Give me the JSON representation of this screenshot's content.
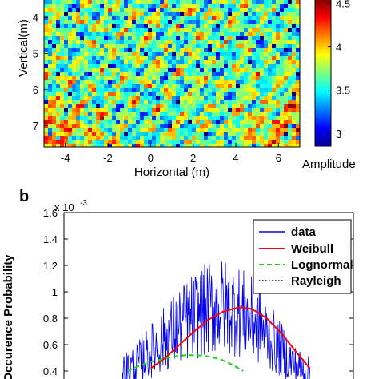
{
  "chart_data": [
    {
      "type": "heatmap",
      "xlabel": "Horizontal (m)",
      "ylabel": "Vertical(m)",
      "x_ticks": [
        -4,
        -2,
        0,
        2,
        4,
        6
      ],
      "y_ticks": [
        4,
        5,
        6,
        7
      ],
      "xlim": [
        -5,
        7
      ],
      "ylim_top_to_bottom": [
        3.5,
        7.6
      ],
      "colorbar": {
        "label": "Amplitude",
        "ticks": [
          "3",
          "3.5",
          "4",
          "4.5"
        ],
        "range": [
          2.85,
          4.55
        ],
        "colormap": "jet"
      }
    },
    {
      "panel_label": "b",
      "type": "line",
      "ylabel": "Occurence Probability",
      "y_exponent": "x 10",
      "y_exponent_power": "-3",
      "y_ticks": [
        "0.4",
        "0.6",
        "0.8",
        "1",
        "1.2",
        "1.4",
        "1.6"
      ],
      "ylim": [
        0.4,
        1.6
      ],
      "x_range": [
        0,
        1
      ],
      "legend_position": "top-right",
      "series": [
        {
          "name": "data",
          "color": "#0000ee",
          "style": "noisy",
          "x": [
            0.2,
            0.25,
            0.3,
            0.35,
            0.4,
            0.45,
            0.5,
            0.55,
            0.6,
            0.65,
            0.7,
            0.75,
            0.8,
            0.85
          ],
          "y": [
            0.4,
            0.45,
            0.55,
            0.65,
            0.74,
            0.82,
            0.87,
            0.89,
            0.86,
            0.79,
            0.68,
            0.56,
            0.44,
            0.38
          ]
        },
        {
          "name": "Weibull",
          "color": "#ff0000",
          "style": "solid",
          "x": [
            0.3,
            0.35,
            0.4,
            0.45,
            0.5,
            0.55,
            0.6,
            0.62,
            0.65,
            0.7,
            0.75,
            0.8,
            0.85
          ],
          "y": [
            0.42,
            0.5,
            0.6,
            0.7,
            0.79,
            0.85,
            0.88,
            0.88,
            0.87,
            0.8,
            0.69,
            0.55,
            0.42
          ]
        },
        {
          "name": "Lognormal",
          "color": "#22cc22",
          "style": "dashed",
          "x": [
            0.22,
            0.26,
            0.3,
            0.34,
            0.38,
            0.42,
            0.46,
            0.5,
            0.54,
            0.58,
            0.62
          ],
          "y": [
            0.4,
            0.44,
            0.47,
            0.49,
            0.51,
            0.52,
            0.52,
            0.51,
            0.49,
            0.45,
            0.4
          ]
        },
        {
          "name": "Rayleigh",
          "color": "#000000",
          "style": "dotted",
          "x": [],
          "y": []
        }
      ]
    }
  ]
}
